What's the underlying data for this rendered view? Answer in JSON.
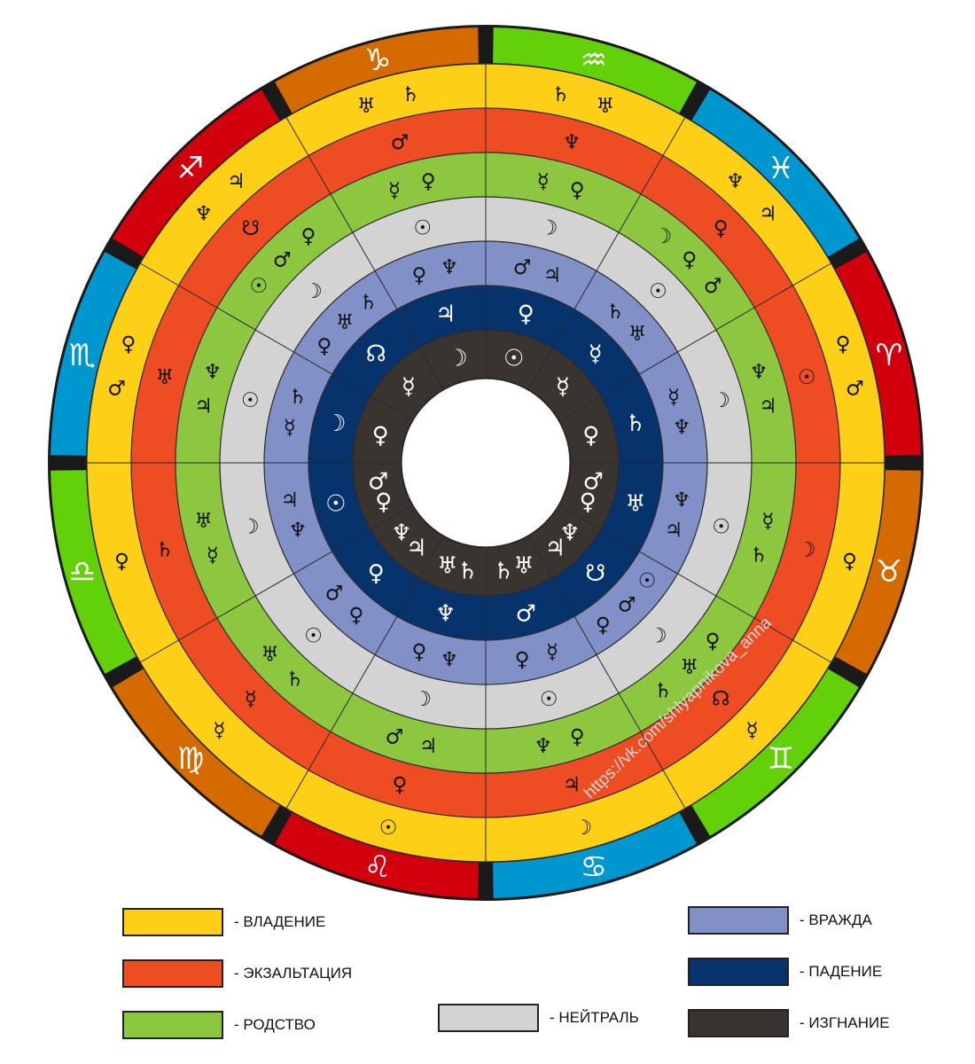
{
  "colors": {
    "fire": "#d2000d",
    "earth": "#d46a00",
    "air": "#63d10a",
    "water": "#0097d0",
    "domicile": "#fdd017",
    "exaltation": "#ee4c22",
    "kinship": "#8dc63f",
    "neutral": "#d3d3d3",
    "enmity": "#8191c7",
    "fall": "#07336d",
    "exile": "#3a3431"
  },
  "signs": [
    {
      "glyph": "♑︎",
      "element": "earth",
      "rings": [
        [
          "♄︎",
          "♅︎"
        ],
        [
          "♂︎"
        ],
        [
          "♀︎",
          "☿︎"
        ],
        [
          "☉︎"
        ],
        [
          "♆︎",
          "♀︎"
        ],
        [
          "♃︎"
        ],
        [
          "☽︎"
        ]
      ]
    },
    {
      "glyph": "♐︎",
      "element": "fire",
      "rings": [
        [
          "♃︎",
          "♆︎"
        ],
        [
          "☋︎"
        ],
        [
          "♀︎",
          "♂︎",
          "☉︎"
        ],
        [
          "☽︎"
        ],
        [
          "♄︎",
          "♅︎",
          "♀︎"
        ],
        [
          "☊︎"
        ],
        [
          "☿︎"
        ]
      ]
    },
    {
      "glyph": "♏︎",
      "element": "water",
      "rings": [
        [
          "♀︎",
          "♂︎"
        ],
        [
          "♅︎"
        ],
        [
          "♆︎",
          "♃︎"
        ],
        [
          "☉︎"
        ],
        [
          "♄︎",
          "☿︎"
        ],
        [
          "☽︎"
        ],
        [
          "♀︎"
        ]
      ]
    },
    {
      "glyph": "♎︎",
      "element": "air",
      "rings": [
        [
          "♀︎"
        ],
        [
          "♄︎"
        ],
        [
          "♅︎",
          "☿︎"
        ],
        [
          "☽︎"
        ],
        [
          "♃︎",
          "♆︎"
        ],
        [
          "☉︎"
        ],
        [
          "♂︎",
          "♀︎"
        ]
      ]
    },
    {
      "glyph": "♍︎",
      "element": "earth",
      "rings": [
        [
          "☿︎"
        ],
        [
          "☿︎"
        ],
        [
          "♅︎",
          "♄︎"
        ],
        [
          "☉︎"
        ],
        [
          "♂︎",
          "♀︎"
        ],
        [
          "♀︎"
        ],
        [
          "♆︎",
          "♃︎"
        ]
      ]
    },
    {
      "glyph": "♌︎",
      "element": "fire",
      "rings": [
        [
          "☉︎"
        ],
        [
          "♀︎"
        ],
        [
          "♂︎",
          "♃︎"
        ],
        [
          "☽︎"
        ],
        [
          "♀︎",
          "♆︎"
        ],
        [
          "♆︎"
        ],
        [
          "♅︎",
          "♄︎"
        ]
      ]
    },
    {
      "glyph": "♋︎",
      "element": "water",
      "rings": [
        [
          "☽︎"
        ],
        [
          "♃︎"
        ],
        [
          "♆︎",
          "♀︎"
        ],
        [
          "☉︎"
        ],
        [
          "♀︎",
          "☿︎"
        ],
        [
          "♂︎"
        ],
        [
          "♄︎",
          "♅︎"
        ]
      ]
    },
    {
      "glyph": "♊︎",
      "element": "air",
      "rings": [
        [
          "☿︎"
        ],
        [
          "☊︎"
        ],
        [
          "♄︎",
          "♅︎",
          "♀︎"
        ],
        [
          "☽︎"
        ],
        [
          "♀︎",
          "♂︎",
          "☉︎"
        ],
        [
          "☋︎"
        ],
        [
          "♃︎",
          "♆︎"
        ]
      ]
    },
    {
      "glyph": "♉︎",
      "element": "earth",
      "rings": [
        [
          "♀︎"
        ],
        [
          "☽︎"
        ],
        [
          "♄︎",
          "☿︎"
        ],
        [
          "☉︎"
        ],
        [
          "♃︎",
          "♆︎"
        ],
        [
          "♅︎"
        ],
        [
          "♀︎",
          "♂︎"
        ]
      ]
    },
    {
      "glyph": "♈︎",
      "element": "fire",
      "rings": [
        [
          "♂︎",
          "♀︎"
        ],
        [
          "☉︎"
        ],
        [
          "♃︎",
          "♆︎"
        ],
        [
          "☽︎"
        ],
        [
          "♆︎",
          "☿︎"
        ],
        [
          "♄︎"
        ],
        [
          "♀︎"
        ]
      ]
    },
    {
      "glyph": "♓︎",
      "element": "water",
      "rings": [
        [
          "♃︎",
          "♆︎"
        ],
        [
          "♀︎"
        ],
        [
          "♂︎",
          "♀︎",
          "☽︎"
        ],
        [
          "☉︎"
        ],
        [
          "♅︎",
          "♄︎"
        ],
        [
          "☿︎"
        ],
        [
          "☿︎"
        ]
      ]
    },
    {
      "glyph": "♒︎",
      "element": "air",
      "rings": [
        [
          "♅︎",
          "♄︎"
        ],
        [
          "♆︎"
        ],
        [
          "♀︎",
          "☿︎"
        ],
        [
          "☽︎"
        ],
        [
          "♃︎",
          "♂︎"
        ],
        [
          "♀︎"
        ],
        [
          "☉︎"
        ]
      ]
    }
  ],
  "legend": [
    {
      "color": "domicile",
      "label": "- ВЛАДЕНИЕ"
    },
    {
      "color": "exaltation",
      "label": "- ЭКЗАЛЬТАЦИЯ"
    },
    {
      "color": "kinship",
      "label": "- РОДСТВО"
    },
    {
      "color": "neutral",
      "label": "- НЕЙТРАЛЬ"
    },
    {
      "color": "enmity",
      "label": "- ВРАЖДА"
    },
    {
      "color": "fall",
      "label": "- ПАДЕНИЕ"
    },
    {
      "color": "exile",
      "label": "- ИЗГНАНИЕ"
    }
  ],
  "watermark": "https://vk.com/shlyapnikova_anna"
}
